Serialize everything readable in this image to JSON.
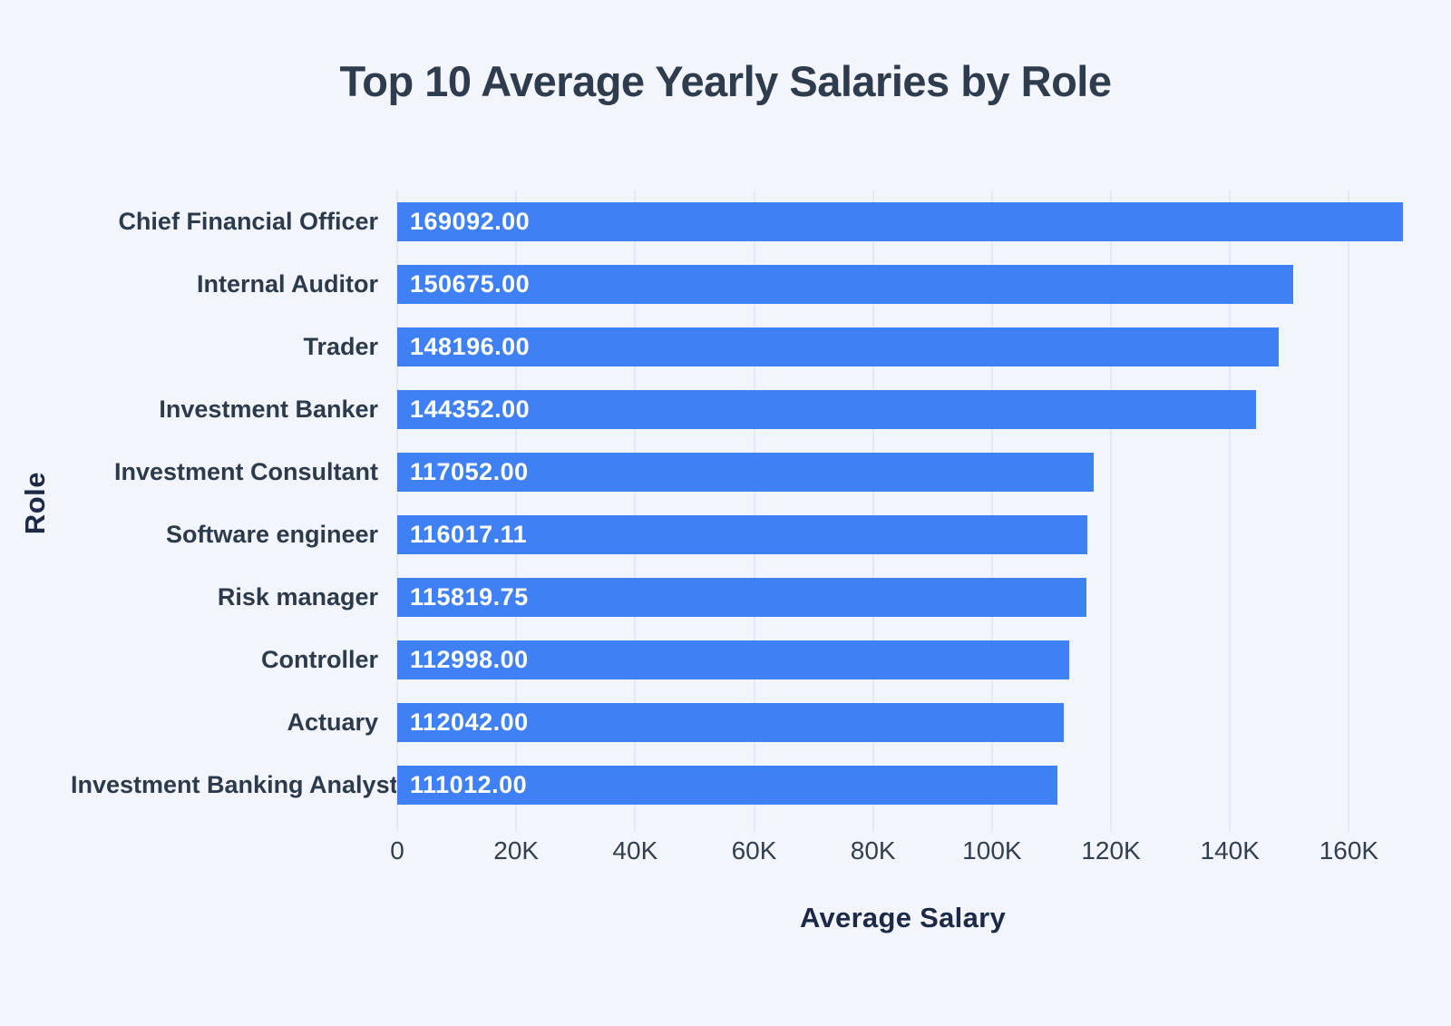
{
  "page": {
    "background_color": "#f2f5fb"
  },
  "chart_data": {
    "type": "bar",
    "orientation": "horizontal",
    "title": "Top 10 Average Yearly Salaries by Role",
    "xlabel": "Average Salary",
    "ylabel": "Role",
    "categories": [
      "Chief Financial Officer",
      "Internal Auditor",
      "Trader",
      "Investment Banker",
      "Investment Consultant",
      "Software engineer",
      "Risk manager",
      "Controller",
      "Actuary",
      "Investment Banking Analyst"
    ],
    "values": [
      169092.0,
      150675.0,
      148196.0,
      144352.0,
      117052.0,
      116017.11,
      115819.75,
      112998.0,
      112042.0,
      111012.0
    ],
    "value_labels": [
      "169092.00",
      "150675.00",
      "148196.00",
      "144352.00",
      "117052.00",
      "116017.11",
      "115819.75",
      "112998.00",
      "112042.00",
      "111012.00"
    ],
    "x_tick_labels": [
      "0",
      "20K",
      "40K",
      "60K",
      "80K",
      "100K",
      "120K",
      "140K",
      "160K"
    ],
    "x_tick_values": [
      0,
      20000,
      40000,
      60000,
      80000,
      100000,
      120000,
      140000,
      160000
    ],
    "xlim": [
      0,
      170000
    ],
    "grid": "vertical",
    "legend": "none",
    "bar_color": "#4080f5",
    "value_label_color": "#ffffff",
    "gridline_color": "#e2e9f7",
    "title_color": "#2f3c4e",
    "category_label_color": "#2c3a4c",
    "tick_label_color": "#333e4f",
    "axis_title_color": "#1d2946"
  }
}
